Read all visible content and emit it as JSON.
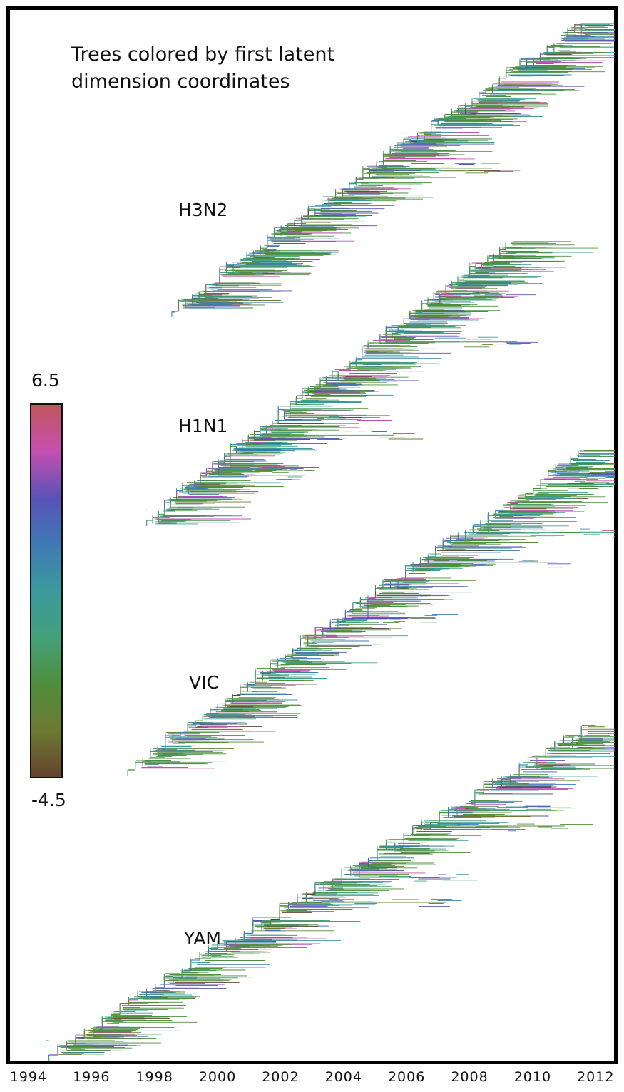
{
  "figure": {
    "title_line1": "Trees colored by first latent",
    "title_line2": "dimension coordinates"
  },
  "colorbar": {
    "max_label": "6.5",
    "min_label": "-4.5",
    "max_value": 6.5,
    "min_value": -4.5,
    "gradient_colors": [
      "#c2565c",
      "#c44fb0",
      "#5a52b6",
      "#3f79b5",
      "#3b9a9c",
      "#44a07a",
      "#4f8e3c",
      "#6c7a33",
      "#64432e"
    ]
  },
  "trees": [
    {
      "name": "H3N2",
      "start_year": 1998.6,
      "end_year": 2012.5
    },
    {
      "name": "H1N1",
      "start_year": 1997.8,
      "end_year": 2010.1
    },
    {
      "name": "VIC",
      "start_year": 1997.2,
      "end_year": 2012.4
    },
    {
      "name": "YAM",
      "start_year": 1994.7,
      "end_year": 2012.5
    }
  ],
  "axis": {
    "label": "",
    "ticks": [
      "1994",
      "1996",
      "1998",
      "2000",
      "2002",
      "2004",
      "2006",
      "2008",
      "2010",
      "2012"
    ],
    "range": [
      1993.6,
      2012.7
    ]
  }
}
